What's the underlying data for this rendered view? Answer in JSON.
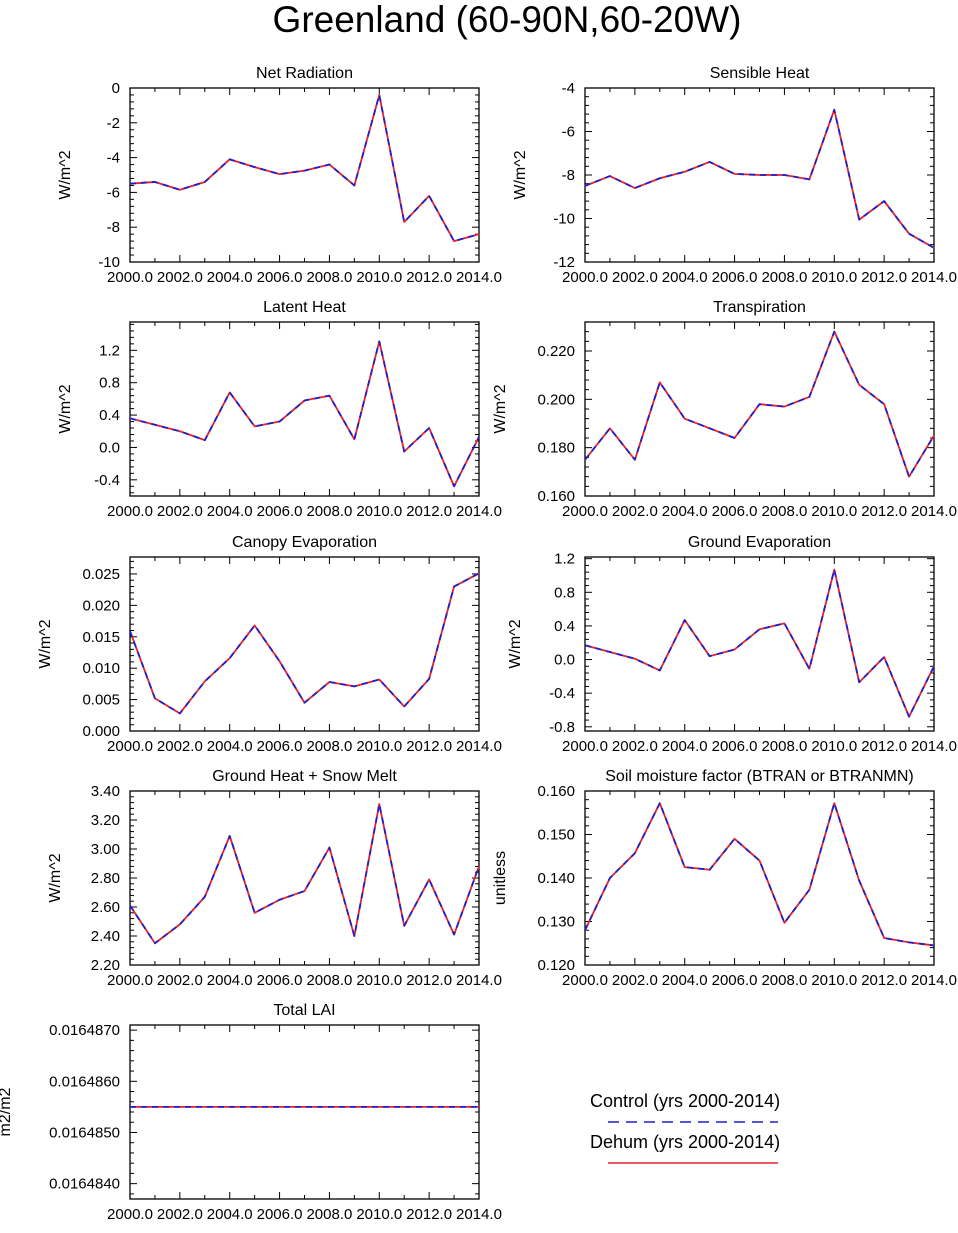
{
  "figure_title": "Greenland (60-90N,60-20W)",
  "colors": {
    "control": "#1f1fcc",
    "dehum": "#e8202a",
    "axis": "#000000"
  },
  "legend": {
    "control_label": "Control (yrs 2000-2014)",
    "dehum_label": "Dehum (yrs 2000-2014)"
  },
  "chart_data": [
    {
      "type": "line",
      "title": "Net Radiation",
      "ylabel": "W/m^2",
      "x": [
        2000,
        2001,
        2002,
        2003,
        2004,
        2005,
        2006,
        2007,
        2008,
        2009,
        2010,
        2011,
        2012,
        2013,
        2014
      ],
      "xlim": [
        2000,
        2014
      ],
      "xticks": [
        2000,
        2002,
        2004,
        2006,
        2008,
        2010,
        2012,
        2014
      ],
      "xtick_labels": [
        "2000.0",
        "2002.0",
        "2004.0",
        "2006.0",
        "2008.0",
        "2010.0",
        "2012.0",
        "2014.0"
      ],
      "ylim": [
        -10,
        0
      ],
      "yticks": [
        -10,
        -8,
        -6,
        -4,
        -2,
        0
      ],
      "ytick_labels": [
        "-10",
        "-8",
        "-6",
        "-4",
        "-2",
        "0"
      ],
      "series": [
        {
          "name": "Control",
          "values": [
            -5.5,
            -5.4,
            -5.85,
            -5.4,
            -4.1,
            -4.55,
            -4.95,
            -4.75,
            -4.4,
            -5.6,
            -0.4,
            -7.7,
            -6.2,
            -8.8,
            -8.4
          ]
        },
        {
          "name": "Dehum",
          "values": [
            -5.5,
            -5.4,
            -5.85,
            -5.4,
            -4.1,
            -4.55,
            -4.95,
            -4.75,
            -4.4,
            -5.6,
            -0.4,
            -7.7,
            -6.2,
            -8.8,
            -8.4
          ]
        }
      ]
    },
    {
      "type": "line",
      "title": "Sensible Heat",
      "ylabel": "W/m^2",
      "x": [
        2000,
        2001,
        2002,
        2003,
        2004,
        2005,
        2006,
        2007,
        2008,
        2009,
        2010,
        2011,
        2012,
        2013,
        2014
      ],
      "xlim": [
        2000,
        2014
      ],
      "xticks": [
        2000,
        2002,
        2004,
        2006,
        2008,
        2010,
        2012,
        2014
      ],
      "xtick_labels": [
        "2000.0",
        "2002.0",
        "2004.0",
        "2006.0",
        "2008.0",
        "2010.0",
        "2012.0",
        "2014.0"
      ],
      "ylim": [
        -12,
        -4
      ],
      "yticks": [
        -12,
        -10,
        -8,
        -6,
        -4
      ],
      "ytick_labels": [
        "-12",
        "-10",
        "-8",
        "-6",
        "-4"
      ],
      "series": [
        {
          "name": "Control",
          "values": [
            -8.5,
            -8.05,
            -8.6,
            -8.15,
            -7.85,
            -7.4,
            -7.95,
            -8.0,
            -8.0,
            -8.2,
            -5.0,
            -10.05,
            -9.2,
            -10.7,
            -11.35
          ]
        },
        {
          "name": "Dehum",
          "values": [
            -8.5,
            -8.05,
            -8.6,
            -8.15,
            -7.85,
            -7.4,
            -7.95,
            -8.0,
            -8.0,
            -8.2,
            -5.0,
            -10.05,
            -9.2,
            -10.7,
            -11.35
          ]
        }
      ]
    },
    {
      "type": "line",
      "title": "Latent Heat",
      "ylabel": "W/m^2",
      "x": [
        2000,
        2001,
        2002,
        2003,
        2004,
        2005,
        2006,
        2007,
        2008,
        2009,
        2010,
        2011,
        2012,
        2013,
        2014
      ],
      "xlim": [
        2000,
        2014
      ],
      "xticks": [
        2000,
        2002,
        2004,
        2006,
        2008,
        2010,
        2012,
        2014
      ],
      "xtick_labels": [
        "2000.0",
        "2002.0",
        "2004.0",
        "2006.0",
        "2008.0",
        "2010.0",
        "2012.0",
        "2014.0"
      ],
      "ylim": [
        -0.6,
        1.55
      ],
      "yticks": [
        -0.4,
        0.0,
        0.4,
        0.8,
        1.2
      ],
      "ytick_labels": [
        "-0.4",
        "0.0",
        "0.4",
        "0.8",
        "1.2"
      ],
      "series": [
        {
          "name": "Control",
          "values": [
            0.36,
            0.28,
            0.2,
            0.09,
            0.68,
            0.26,
            0.32,
            0.58,
            0.64,
            0.1,
            1.31,
            -0.05,
            0.24,
            -0.48,
            0.13
          ]
        },
        {
          "name": "Dehum",
          "values": [
            0.36,
            0.28,
            0.2,
            0.09,
            0.68,
            0.26,
            0.32,
            0.58,
            0.64,
            0.1,
            1.31,
            -0.05,
            0.24,
            -0.48,
            0.13
          ]
        }
      ]
    },
    {
      "type": "line",
      "title": "Transpiration",
      "ylabel": "W/m^2",
      "x": [
        2000,
        2001,
        2002,
        2003,
        2004,
        2005,
        2006,
        2007,
        2008,
        2009,
        2010,
        2011,
        2012,
        2013,
        2014
      ],
      "xlim": [
        2000,
        2014
      ],
      "xticks": [
        2000,
        2002,
        2004,
        2006,
        2008,
        2010,
        2012,
        2014
      ],
      "xtick_labels": [
        "2000.0",
        "2002.0",
        "2004.0",
        "2006.0",
        "2008.0",
        "2010.0",
        "2012.0",
        "2014.0"
      ],
      "ylim": [
        0.16,
        0.232
      ],
      "yticks": [
        0.16,
        0.18,
        0.2,
        0.22
      ],
      "ytick_labels": [
        "0.160",
        "0.180",
        "0.200",
        "0.220"
      ],
      "series": [
        {
          "name": "Control",
          "values": [
            0.175,
            0.188,
            0.175,
            0.207,
            0.192,
            0.188,
            0.184,
            0.198,
            0.197,
            0.201,
            0.228,
            0.206,
            0.198,
            0.168,
            0.185
          ]
        },
        {
          "name": "Dehum",
          "values": [
            0.175,
            0.188,
            0.175,
            0.207,
            0.192,
            0.188,
            0.184,
            0.198,
            0.197,
            0.201,
            0.228,
            0.206,
            0.198,
            0.168,
            0.185
          ]
        }
      ]
    },
    {
      "type": "line",
      "title": "Canopy Evaporation",
      "ylabel": "W/m^2",
      "x": [
        2000,
        2001,
        2002,
        2003,
        2004,
        2005,
        2006,
        2007,
        2008,
        2009,
        2010,
        2011,
        2012,
        2013,
        2014
      ],
      "xlim": [
        2000,
        2014
      ],
      "xticks": [
        2000,
        2002,
        2004,
        2006,
        2008,
        2010,
        2012,
        2014
      ],
      "xtick_labels": [
        "2000.0",
        "2002.0",
        "2004.0",
        "2006.0",
        "2008.0",
        "2010.0",
        "2012.0",
        "2014.0"
      ],
      "ylim": [
        0.0,
        0.0277
      ],
      "yticks": [
        0.0,
        0.005,
        0.01,
        0.015,
        0.02,
        0.025
      ],
      "ytick_labels": [
        "0.000",
        "0.005",
        "0.010",
        "0.015",
        "0.020",
        "0.025"
      ],
      "series": [
        {
          "name": "Control",
          "values": [
            0.0159,
            0.0052,
            0.0028,
            0.0079,
            0.0116,
            0.0168,
            0.0111,
            0.0045,
            0.0078,
            0.0071,
            0.0082,
            0.0039,
            0.0083,
            0.023,
            0.0251
          ]
        },
        {
          "name": "Dehum",
          "values": [
            0.0159,
            0.0052,
            0.0028,
            0.0079,
            0.0116,
            0.0168,
            0.0111,
            0.0045,
            0.0078,
            0.0071,
            0.0082,
            0.0039,
            0.0083,
            0.023,
            0.0251
          ]
        }
      ]
    },
    {
      "type": "line",
      "title": "Ground Evaporation",
      "ylabel": "W/m^2",
      "x": [
        2000,
        2001,
        2002,
        2003,
        2004,
        2005,
        2006,
        2007,
        2008,
        2009,
        2010,
        2011,
        2012,
        2013,
        2014
      ],
      "xlim": [
        2000,
        2014
      ],
      "xticks": [
        2000,
        2002,
        2004,
        2006,
        2008,
        2010,
        2012,
        2014
      ],
      "xtick_labels": [
        "2000.0",
        "2002.0",
        "2004.0",
        "2006.0",
        "2008.0",
        "2010.0",
        "2012.0",
        "2014.0"
      ],
      "ylim": [
        -0.85,
        1.22
      ],
      "yticks": [
        -0.8,
        -0.4,
        0.0,
        0.4,
        0.8,
        1.2
      ],
      "ytick_labels": [
        "-0.8",
        "-0.4",
        "0.0",
        "0.4",
        "0.8",
        "1.2"
      ],
      "series": [
        {
          "name": "Control",
          "values": [
            0.17,
            0.09,
            0.01,
            -0.13,
            0.47,
            0.04,
            0.12,
            0.36,
            0.43,
            -0.11,
            1.07,
            -0.27,
            0.03,
            -0.68,
            -0.08
          ]
        },
        {
          "name": "Dehum",
          "values": [
            0.17,
            0.09,
            0.01,
            -0.13,
            0.47,
            0.04,
            0.12,
            0.36,
            0.43,
            -0.11,
            1.07,
            -0.27,
            0.03,
            -0.68,
            -0.08
          ]
        }
      ]
    },
    {
      "type": "line",
      "title": "Ground Heat + Snow Melt",
      "ylabel": "W/m^2",
      "x": [
        2000,
        2001,
        2002,
        2003,
        2004,
        2005,
        2006,
        2007,
        2008,
        2009,
        2010,
        2011,
        2012,
        2013,
        2014
      ],
      "xlim": [
        2000,
        2014
      ],
      "xticks": [
        2000,
        2002,
        2004,
        2006,
        2008,
        2010,
        2012,
        2014
      ],
      "xtick_labels": [
        "2000.0",
        "2002.0",
        "2004.0",
        "2006.0",
        "2008.0",
        "2010.0",
        "2012.0",
        "2014.0"
      ],
      "ylim": [
        2.2,
        3.4
      ],
      "yticks": [
        2.2,
        2.4,
        2.6,
        2.8,
        3.0,
        3.2,
        3.4
      ],
      "ytick_labels": [
        "2.20",
        "2.40",
        "2.60",
        "2.80",
        "3.00",
        "3.20",
        "3.40"
      ],
      "series": [
        {
          "name": "Control",
          "values": [
            2.61,
            2.35,
            2.48,
            2.67,
            3.09,
            2.56,
            2.65,
            2.71,
            3.01,
            2.4,
            3.31,
            2.47,
            2.79,
            2.41,
            2.88
          ]
        },
        {
          "name": "Dehum",
          "values": [
            2.61,
            2.35,
            2.48,
            2.67,
            3.09,
            2.56,
            2.65,
            2.71,
            3.01,
            2.4,
            3.31,
            2.47,
            2.79,
            2.41,
            2.88
          ]
        }
      ]
    },
    {
      "type": "line",
      "title": "Soil moisture factor (BTRAN or BTRANMN)",
      "ylabel": "unitless",
      "x": [
        2000,
        2001,
        2002,
        2003,
        2004,
        2005,
        2006,
        2007,
        2008,
        2009,
        2010,
        2011,
        2012,
        2013,
        2014
      ],
      "xlim": [
        2000,
        2014
      ],
      "xticks": [
        2000,
        2002,
        2004,
        2006,
        2008,
        2010,
        2012,
        2014
      ],
      "xtick_labels": [
        "2000.0",
        "2002.0",
        "2004.0",
        "2006.0",
        "2008.0",
        "2010.0",
        "2012.0",
        "2014.0"
      ],
      "ylim": [
        0.12,
        0.16
      ],
      "yticks": [
        0.12,
        0.13,
        0.14,
        0.15,
        0.16
      ],
      "ytick_labels": [
        "0.120",
        "0.130",
        "0.140",
        "0.150",
        "0.160"
      ],
      "series": [
        {
          "name": "Control",
          "values": [
            0.128,
            0.14,
            0.1457,
            0.1572,
            0.1425,
            0.1419,
            0.149,
            0.144,
            0.1297,
            0.1373,
            0.1572,
            0.1394,
            0.1262,
            0.1252,
            0.1245
          ]
        },
        {
          "name": "Dehum",
          "values": [
            0.128,
            0.14,
            0.1457,
            0.1572,
            0.1425,
            0.1419,
            0.149,
            0.144,
            0.1297,
            0.1373,
            0.1572,
            0.1394,
            0.1262,
            0.1252,
            0.1245
          ]
        }
      ]
    },
    {
      "type": "line",
      "title": "Total LAI",
      "ylabel": "m2/m2",
      "x": [
        2000,
        2001,
        2002,
        2003,
        2004,
        2005,
        2006,
        2007,
        2008,
        2009,
        2010,
        2011,
        2012,
        2013,
        2014
      ],
      "xlim": [
        2000,
        2014
      ],
      "xticks": [
        2000,
        2002,
        2004,
        2006,
        2008,
        2010,
        2012,
        2014
      ],
      "xtick_labels": [
        "2000.0",
        "2002.0",
        "2004.0",
        "2006.0",
        "2008.0",
        "2010.0",
        "2012.0",
        "2014.0"
      ],
      "ylim": [
        0.0164837,
        0.0164871
      ],
      "yticks": [
        0.016484,
        0.016485,
        0.016486,
        0.016487
      ],
      "ytick_labels": [
        "0.0164840",
        "0.0164850",
        "0.0164860",
        "0.0164870"
      ],
      "series": [
        {
          "name": "Control",
          "values": [
            0.0164855,
            0.0164855,
            0.0164855,
            0.0164855,
            0.0164855,
            0.0164855,
            0.0164855,
            0.0164855,
            0.0164855,
            0.0164855,
            0.0164855,
            0.0164855,
            0.0164855,
            0.0164855,
            0.0164855
          ]
        },
        {
          "name": "Dehum",
          "values": [
            0.0164855,
            0.0164855,
            0.0164855,
            0.0164855,
            0.0164855,
            0.0164855,
            0.0164855,
            0.0164855,
            0.0164855,
            0.0164855,
            0.0164855,
            0.0164855,
            0.0164855,
            0.0164855,
            0.0164855
          ]
        }
      ]
    }
  ]
}
